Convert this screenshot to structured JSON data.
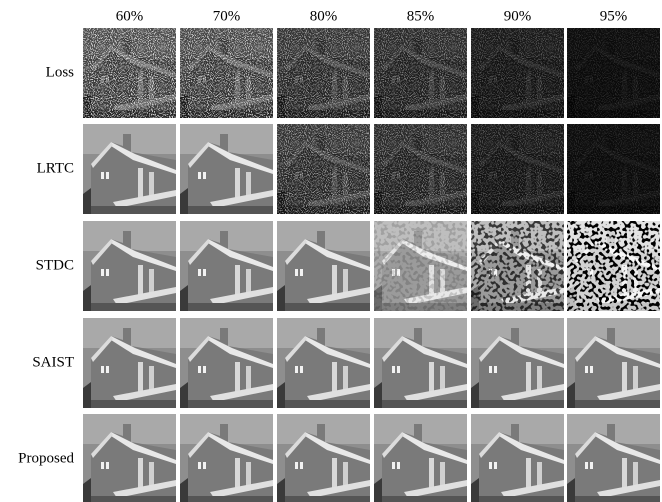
{
  "columns": [
    "60%",
    "70%",
    "80%",
    "85%",
    "90%",
    "95%"
  ],
  "rows": [
    "Loss",
    "LRTC",
    "STDC",
    "SAIST",
    "Proposed"
  ]
}
